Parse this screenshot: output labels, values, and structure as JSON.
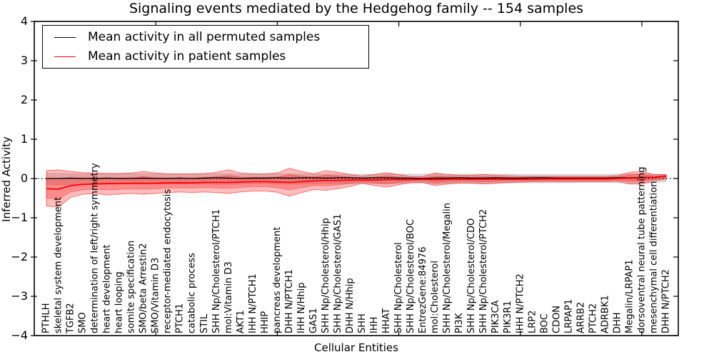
{
  "figure": {
    "title": "Signaling events mediated by the Hedgehog family -- 154 samples",
    "xlabel": "Cellular Entities",
    "ylabel": "Inferred Activity"
  },
  "legend": {
    "items": [
      {
        "label": "Mean activity in all permuted samples",
        "color": "#000000"
      },
      {
        "label": "Mean activity in patient samples",
        "color": "#ff0000"
      }
    ]
  },
  "chart_data": {
    "type": "line",
    "title": "Signaling events mediated by the Hedgehog family -- 154 samples",
    "xlabel": "Cellular Entities",
    "ylabel": "Inferred Activity",
    "ylim": [
      -4,
      4
    ],
    "yticks": [
      -4,
      -3,
      -2,
      -1,
      0,
      1,
      2,
      3,
      4
    ],
    "xticks": [
      10,
      20,
      30,
      40,
      50
    ],
    "grid": false,
    "legend_position": "upper left",
    "zero_line": {
      "y": 0,
      "style": "dotted",
      "color": "#000000"
    },
    "categories": [
      "PTHLH",
      "skeletal system development",
      "TGFB2",
      "SMO",
      "determination of left/right symmetry",
      "heart development",
      "heart looping",
      "somite specification",
      "SMO/beta Arrestin2",
      "SMO/Vitamin D3",
      "receptor-mediated endocytosis",
      "PTCH1",
      "catabolic process",
      "STIL",
      "SHH Np/Cholesterol/PTCH1",
      "mol:Vitamin D3",
      "AKT1",
      "IHH N/PTCH1",
      "HHIP",
      "pancreas development",
      "DHH N/PTCH1",
      "IHH N/Hhip",
      "GAS1",
      "SHH Np/Cholesterol/Hhip",
      "SHH Np/Cholesterol/GAS1",
      "DHH N/Hhip",
      "SHH",
      "IHH",
      "HHAT",
      "SHH Np/Cholesterol",
      "SHH Np/Cholesterol/BOC",
      "EntrezGene:84976",
      "mol:Cholesterol",
      "SHH Np/Cholesterol/Megalin",
      "PI3K",
      "SHH Np/Cholesterol/CDO",
      "SHH Np/Cholesterol/PTCH2",
      "PIK3CA",
      "PIK3R1",
      "IHH N/PTCH2",
      "LRP2",
      "BOC",
      "CDON",
      "LRPAP1",
      "ARRB2",
      "PTCH2",
      "ADRBK1",
      "DHH",
      "Megalin/LRPAP1",
      "dorsoventral neural tube patterning",
      "mesenchymal cell differentiation",
      "DHH N/PTCH2"
    ],
    "series": [
      {
        "name": "Mean activity in all permuted samples",
        "color": "#000000",
        "width": 1.3,
        "values": [
          0.0,
          0.0,
          0.01,
          0.0,
          0.0,
          0.01,
          0.0,
          0.0,
          0.01,
          0.0,
          0.0,
          0.01,
          0.0,
          0.01,
          0.02,
          0.01,
          0.0,
          0.01,
          0.01,
          0.02,
          0.01,
          0.02,
          0.02,
          0.01,
          0.02,
          0.02,
          0.01,
          0.02,
          0.02,
          0.01,
          0.01,
          0.0,
          0.01,
          0.01,
          0.02,
          0.01,
          0.01,
          0.02,
          0.01,
          0.01,
          0.02,
          0.02,
          0.01,
          0.01,
          0.01,
          0.01,
          0.01,
          0.02,
          0.02,
          0.03,
          0.03,
          0.06
        ]
      },
      {
        "name": "Mean activity in patient samples",
        "color": "#ff0000",
        "width": 1.8,
        "values": [
          -0.26,
          -0.27,
          -0.18,
          -0.15,
          -0.14,
          -0.13,
          -0.13,
          -0.12,
          -0.12,
          -0.12,
          -0.11,
          -0.11,
          -0.11,
          -0.1,
          -0.1,
          -0.1,
          -0.09,
          -0.08,
          -0.08,
          -0.09,
          -0.1,
          -0.08,
          -0.06,
          -0.05,
          -0.05,
          -0.04,
          -0.04,
          -0.04,
          -0.03,
          -0.03,
          -0.03,
          -0.02,
          -0.03,
          -0.02,
          -0.02,
          -0.02,
          -0.02,
          -0.02,
          -0.02,
          -0.02,
          -0.02,
          -0.01,
          -0.01,
          -0.01,
          -0.01,
          -0.01,
          -0.01,
          0.0,
          0.01,
          0.02,
          0.03,
          0.06
        ]
      }
    ],
    "bands": [
      {
        "name": "permuted-band",
        "color": "#888888",
        "opacity": 0.28,
        "upper": [
          0.13,
          0.13,
          0.12,
          0.12,
          0.12,
          0.12,
          0.12,
          0.12,
          0.12,
          0.12,
          0.11,
          0.11,
          0.11,
          0.11,
          0.12,
          0.12,
          0.11,
          0.11,
          0.11,
          0.12,
          0.12,
          0.12,
          0.11,
          0.11,
          0.11,
          0.11,
          0.11,
          0.11,
          0.12,
          0.11,
          0.11,
          0.11,
          0.12,
          0.11,
          0.11,
          0.11,
          0.11,
          0.11,
          0.11,
          0.1,
          0.1,
          0.1,
          0.1,
          0.1,
          0.1,
          0.1,
          0.1,
          0.11,
          0.12,
          0.12,
          0.11,
          0.1
        ],
        "lower": [
          -0.16,
          -0.16,
          -0.15,
          -0.15,
          -0.14,
          -0.15,
          -0.14,
          -0.14,
          -0.15,
          -0.14,
          -0.14,
          -0.14,
          -0.14,
          -0.14,
          -0.15,
          -0.15,
          -0.14,
          -0.13,
          -0.13,
          -0.14,
          -0.15,
          -0.14,
          -0.13,
          -0.13,
          -0.13,
          -0.13,
          -0.13,
          -0.13,
          -0.14,
          -0.13,
          -0.13,
          -0.13,
          -0.14,
          -0.13,
          -0.12,
          -0.12,
          -0.12,
          -0.12,
          -0.12,
          -0.11,
          -0.11,
          -0.11,
          -0.11,
          -0.11,
          -0.1,
          -0.1,
          -0.1,
          -0.11,
          -0.12,
          -0.12,
          -0.1,
          -0.08
        ]
      },
      {
        "name": "patient-band",
        "color": "#ff0000",
        "opacity": 0.26,
        "upper": [
          0.2,
          0.22,
          0.18,
          0.15,
          0.14,
          0.13,
          0.13,
          0.14,
          0.18,
          0.14,
          0.12,
          0.12,
          0.12,
          0.13,
          0.16,
          0.22,
          0.14,
          0.12,
          0.12,
          0.14,
          0.26,
          0.18,
          0.12,
          0.2,
          0.16,
          0.1,
          0.06,
          0.1,
          0.15,
          0.1,
          0.05,
          0.05,
          0.14,
          0.1,
          0.08,
          0.08,
          0.1,
          0.08,
          0.07,
          0.06,
          0.06,
          0.06,
          0.06,
          0.06,
          0.06,
          0.06,
          0.06,
          0.07,
          0.16,
          0.18,
          0.1,
          0.1
        ],
        "lower": [
          -0.7,
          -0.73,
          -0.48,
          -0.4,
          -0.38,
          -0.42,
          -0.4,
          -0.38,
          -0.4,
          -0.38,
          -0.36,
          -0.34,
          -0.36,
          -0.34,
          -0.36,
          -0.38,
          -0.34,
          -0.32,
          -0.32,
          -0.35,
          -0.45,
          -0.36,
          -0.28,
          -0.3,
          -0.26,
          -0.2,
          -0.12,
          -0.18,
          -0.22,
          -0.16,
          -0.1,
          -0.1,
          -0.18,
          -0.14,
          -0.12,
          -0.12,
          -0.14,
          -0.12,
          -0.1,
          -0.09,
          -0.08,
          -0.08,
          -0.08,
          -0.08,
          -0.08,
          -0.08,
          -0.08,
          -0.07,
          -0.14,
          -0.14,
          -0.06,
          -0.02
        ]
      }
    ]
  }
}
